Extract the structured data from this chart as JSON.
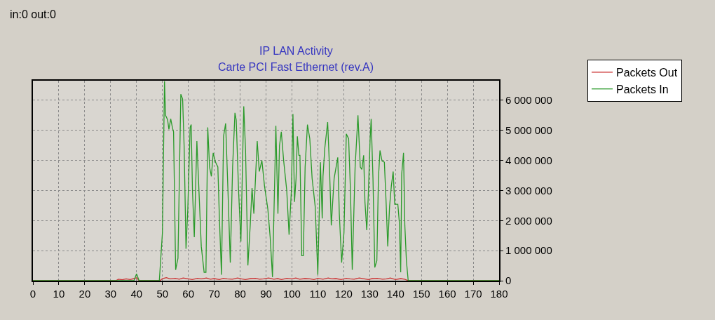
{
  "chart_data": {
    "type": "line",
    "title": "IP LAN Activity",
    "subtitle": "Carte PCI Fast Ethernet (rev.A)",
    "annotations": [
      "in:0 out:0"
    ],
    "series": [
      {
        "name": "Packets Out",
        "color": "#cc3333",
        "x": [
          0,
          32,
          33,
          34.5,
          36,
          37.5,
          39,
          40,
          41,
          49,
          50,
          51.5,
          53,
          55,
          56.5,
          58,
          60,
          61.5,
          63.5,
          65,
          67,
          68.5,
          70,
          72,
          73.5,
          75,
          77,
          79,
          80.5,
          82,
          84,
          86,
          87.5,
          89,
          91,
          93,
          94.5,
          96,
          98,
          100,
          101.5,
          103,
          105,
          107,
          108.5,
          110,
          112,
          114,
          115.5,
          117,
          119,
          121,
          122.5,
          124,
          126,
          128,
          129.5,
          131,
          133,
          135,
          136.5,
          138,
          140,
          142,
          143.5,
          145,
          180
        ],
        "values": [
          0,
          0,
          50000,
          30000,
          60000,
          40000,
          70000,
          100000,
          0,
          0,
          70000,
          100000,
          60000,
          80000,
          50000,
          90000,
          60000,
          40000,
          80000,
          60000,
          90000,
          50000,
          70000,
          40000,
          80000,
          60000,
          50000,
          90000,
          60000,
          40000,
          70000,
          80000,
          50000,
          60000,
          90000,
          50000,
          70000,
          40000,
          80000,
          60000,
          90000,
          50000,
          70000,
          60000,
          40000,
          80000,
          50000,
          90000,
          60000,
          70000,
          40000,
          80000,
          60000,
          50000,
          90000,
          60000,
          40000,
          70000,
          80000,
          50000,
          60000,
          90000,
          40000,
          70000,
          50000,
          0,
          0
        ]
      },
      {
        "name": "Packets In",
        "color": "#2a9a2a",
        "x": [
          0,
          39,
          40,
          41,
          48.8,
          50,
          50.8,
          51.2,
          52,
          52.5,
          53.2,
          53.9,
          54.3,
          55.1,
          56,
          57.1,
          57.8,
          58.4,
          59.1,
          59.8,
          60.7,
          61.1,
          61.6,
          62.3,
          63.3,
          63.9,
          65,
          66.1,
          66.8,
          67.5,
          68.2,
          68.9,
          69.6,
          70.5,
          71.4,
          72,
          72.8,
          73.6,
          74.4,
          75.3,
          76.2,
          77.1,
          78,
          78.5,
          79.4,
          80.3,
          81.4,
          82.1,
          83,
          83.9,
          84.6,
          85.3,
          86.6,
          87.4,
          88.4,
          89.4,
          90.7,
          91.6,
          92.5,
          93.4,
          93.8,
          94.6,
          95.2,
          95.9,
          96.8,
          98,
          98.9,
          99.8,
          100.4,
          101,
          101.6,
          102.1,
          102.7,
          103.1,
          103.8,
          104.4,
          105.1,
          106,
          106.9,
          107.8,
          109,
          110,
          111,
          111.7,
          112,
          112.7,
          113.8,
          114.5,
          115.2,
          116.3,
          117.7,
          118.3,
          119.2,
          120.1,
          121,
          121.9,
          122.6,
          123.3,
          124.4,
          125.5,
          126.4,
          127,
          127.7,
          128.2,
          128.9,
          129.5,
          130.2,
          130.6,
          131.3,
          132,
          132.8,
          133.4,
          134,
          134.8,
          135.7,
          136.4,
          137,
          137.7,
          138.4,
          139.1,
          139.7,
          140.9,
          141.5,
          142,
          142.4,
          143.1,
          143.6,
          144.2,
          144.9,
          180
        ],
        "values": [
          0,
          0,
          230000,
          0,
          0,
          1600000,
          6630000,
          5500000,
          5350000,
          5030000,
          5380000,
          5070000,
          4950000,
          360000,
          750000,
          6200000,
          6040000,
          4400000,
          1060000,
          2380000,
          5100000,
          5190000,
          3000000,
          1450000,
          4640000,
          3400000,
          1140000,
          280000,
          280000,
          5100000,
          3780000,
          3470000,
          4250000,
          3940000,
          3780000,
          2070000,
          200000,
          4800000,
          5230000,
          3000000,
          600000,
          3780000,
          5580000,
          5340000,
          3000000,
          1300000,
          5800000,
          4330000,
          510000,
          1840000,
          3080000,
          2230000,
          4640000,
          3630000,
          4000000,
          3160000,
          2380000,
          1450000,
          120000,
          3550000,
          5150000,
          2230000,
          4490000,
          4950000,
          4000000,
          3000000,
          1530000,
          3000000,
          5540000,
          2620000,
          3400000,
          4800000,
          4170000,
          4170000,
          830000,
          830000,
          3780000,
          5190000,
          4720000,
          3400000,
          2460000,
          200000,
          3940000,
          2070000,
          3470000,
          4410000,
          5270000,
          3780000,
          1840000,
          3400000,
          4100000,
          2230000,
          600000,
          1600000,
          4880000,
          4720000,
          3000000,
          360000,
          3780000,
          5500000,
          3780000,
          3700000,
          4170000,
          2620000,
          1680000,
          2850000,
          4720000,
          5380000,
          3400000,
          440000,
          670000,
          3400000,
          4330000,
          3980000,
          3940000,
          2540000,
          1140000,
          2460000,
          3160000,
          3630000,
          2540000,
          2540000,
          1920000,
          280000,
          3550000,
          4250000,
          1840000,
          670000,
          0,
          0
        ]
      }
    ],
    "xlim": [
      0,
      180
    ],
    "xticks": [
      0,
      10,
      20,
      30,
      40,
      50,
      60,
      70,
      80,
      90,
      100,
      110,
      120,
      130,
      140,
      150,
      160,
      170,
      180
    ],
    "ylim": [
      0,
      6650000
    ],
    "yticks": [
      0,
      {
        "value": 1000000,
        "label": "1 000 000"
      },
      {
        "value": 2000000,
        "label": "2 000 000"
      },
      {
        "value": 3000000,
        "label": "3 000 000"
      },
      {
        "value": 4000000,
        "label": "4 000 000"
      },
      {
        "value": 5000000,
        "label": "5 000 000"
      },
      {
        "value": 6000000,
        "label": "6 000 000"
      }
    ],
    "grid": true,
    "legend": "top right"
  }
}
